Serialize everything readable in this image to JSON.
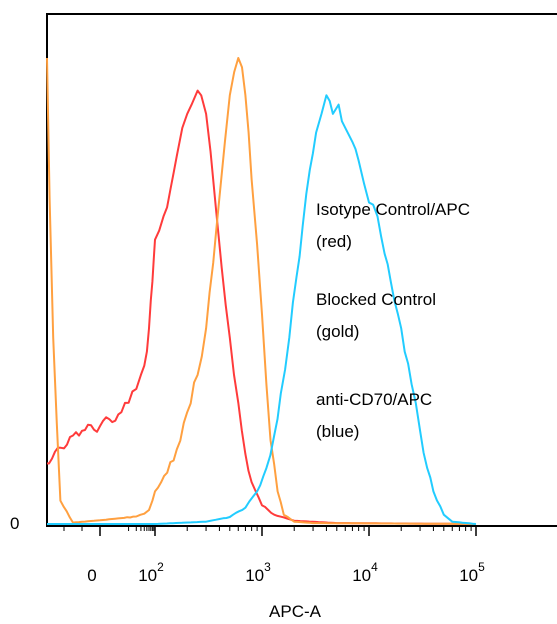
{
  "chart_data": {
    "type": "line",
    "title": "",
    "xlabel": "APC-A",
    "ylabel": "",
    "x_scale": "biexponential",
    "x_ticks": [
      {
        "value": 0,
        "base": "0",
        "exp": ""
      },
      {
        "value": 100,
        "base": "10",
        "exp": "2"
      },
      {
        "value": 1000,
        "base": "10",
        "exp": "3"
      },
      {
        "value": 10000,
        "base": "10",
        "exp": "4"
      },
      {
        "value": 100000,
        "base": "10",
        "exp": "5"
      }
    ],
    "y_ticks": [
      {
        "value": 0,
        "label": "0"
      }
    ],
    "ylim": [
      0,
      100
    ],
    "grid": false,
    "legend": [
      {
        "line1": "Isotype Control/APC",
        "line2": "(red)",
        "series": 0
      },
      {
        "line1": "Blocked Control",
        "line2": "(gold)",
        "series": 1
      },
      {
        "line1": "anti-CD70/APC",
        "line2": "(blue)",
        "series": 2
      }
    ],
    "series": [
      {
        "color": "#ff3b3b",
        "x": [
          -30,
          -15,
          -10,
          0,
          5,
          10,
          20,
          30,
          40,
          50,
          60,
          70,
          80,
          90,
          100,
          120,
          140,
          160,
          180,
          200,
          220,
          250,
          270,
          300,
          330,
          370,
          420,
          500,
          600,
          700,
          800,
          1000,
          1300,
          2000,
          5000,
          100000
        ],
        "y": [
          13,
          19,
          20,
          21,
          24,
          26,
          29,
          32,
          34,
          37,
          42,
          48,
          52,
          57,
          61,
          66,
          72,
          79,
          85,
          88,
          90,
          93,
          92,
          88,
          80,
          68,
          55,
          40,
          26,
          15,
          9,
          4,
          2,
          0.7,
          0.2,
          0
        ]
      },
      {
        "color": "#ffa040",
        "x": [
          -30,
          -26,
          -22,
          -15,
          0,
          20,
          40,
          60,
          80,
          100,
          130,
          160,
          200,
          250,
          300,
          350,
          400,
          450,
          500,
          550,
          600,
          650,
          700,
          750,
          800,
          900,
          1000,
          1100,
          1200,
          1400,
          1600,
          2000,
          3000,
          100000
        ],
        "y": [
          100,
          40,
          5,
          0.3,
          0.8,
          1.6,
          2.2,
          3,
          5,
          7,
          11,
          16,
          24,
          32,
          42,
          56,
          70,
          82,
          92,
          97,
          100,
          98,
          92,
          84,
          74,
          60,
          45,
          30,
          18,
          7,
          2,
          0.5,
          0.2,
          0
        ]
      },
      {
        "color": "#22ccff",
        "x": [
          -30,
          100,
          300,
          500,
          700,
          900,
          1100,
          1300,
          1500,
          1800,
          2100,
          2400,
          2800,
          3200,
          3600,
          4000,
          4600,
          5200,
          6000,
          7000,
          8000,
          9000,
          10000,
          12000,
          14000,
          16000,
          20000,
          25000,
          30000,
          35000,
          40000,
          50000,
          60000,
          100000
        ],
        "y": [
          0,
          0,
          0.5,
          1.5,
          3.5,
          7,
          12,
          19,
          28,
          40,
          53,
          64,
          76,
          84,
          88,
          92,
          88,
          90,
          85,
          82,
          78,
          73,
          69,
          66,
          58,
          52,
          42,
          30,
          20,
          12,
          7,
          2,
          0.5,
          0
        ]
      }
    ]
  }
}
